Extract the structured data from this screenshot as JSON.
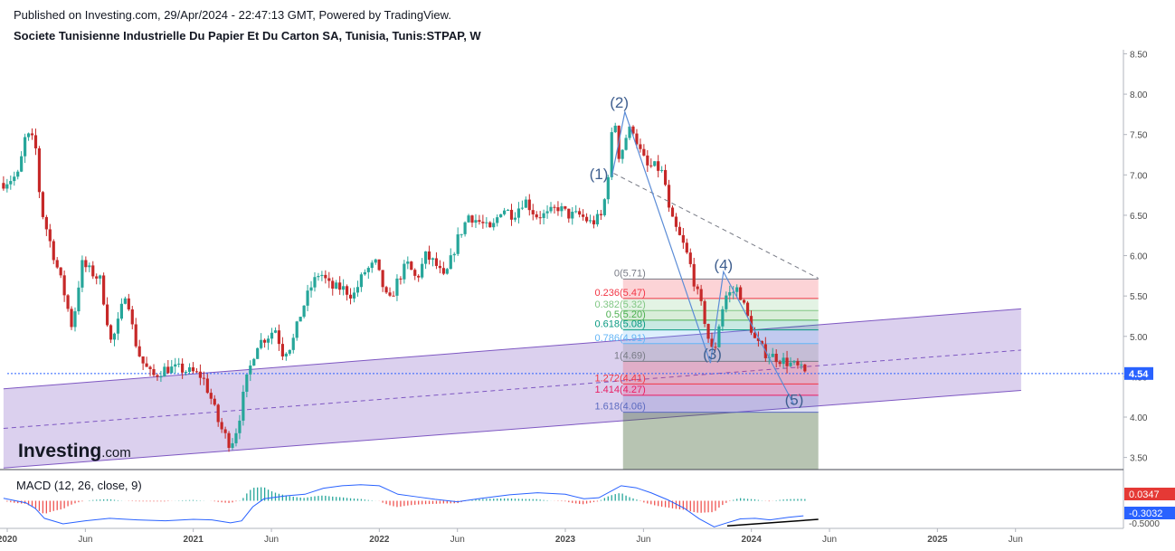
{
  "header": {
    "published": "Published on Investing.com, 29/Apr/2024 - 22:47:13 GMT, Powered by TradingView.",
    "title": "Societe Tunisienne Industrielle Du Papier Et Du Carton SA, Tunisia, Tunis:STPAP, W"
  },
  "logo": {
    "main": "Investing",
    "suffix": ".com"
  },
  "chart_data": [
    {
      "type": "candlestick",
      "title": "Societe Tunisienne Industrielle Du Papier Et Du Carton SA, Tunisia, Tunis:STPAP, W",
      "timeframe": "W",
      "y_axis": {
        "side": "right",
        "range": [
          3.35,
          8.55
        ],
        "ticks": [
          8.5,
          8.0,
          7.5,
          7.0,
          6.5,
          6.0,
          5.5,
          5.0,
          4.5,
          4.0,
          3.5
        ],
        "tick_labels": [
          "8.50",
          "8.00",
          "7.50",
          "7.00",
          "6.50",
          "6.00",
          "5.50",
          "5.00",
          "4.50",
          "4.00",
          "3.50"
        ]
      },
      "x_axis": {
        "range": [
          2020.0,
          2026.0
        ],
        "ticks": [
          2020.0,
          2020.42,
          2021.0,
          2021.42,
          2022.0,
          2022.42,
          2023.0,
          2023.42,
          2024.0,
          2024.42,
          2025.0,
          2025.42
        ],
        "tick_labels": [
          "2020",
          "Jun",
          "2021",
          "Jun",
          "2022",
          "Jun",
          "2023",
          "Jun",
          "2024",
          "Jun",
          "2025",
          "Jun"
        ]
      },
      "colors": {
        "up": "#26a69a",
        "down": "#c62828",
        "channel": "#7e57c2",
        "wave": "#5b8cd6"
      },
      "last_price": {
        "value": 4.54,
        "label": "4.54",
        "color": "#2962ff"
      },
      "price_path": [
        [
          2019.98,
          6.9
        ],
        [
          2020.06,
          7.0
        ],
        [
          2020.1,
          7.5
        ],
        [
          2020.15,
          7.4
        ],
        [
          2020.18,
          6.6
        ],
        [
          2020.25,
          6.0
        ],
        [
          2020.3,
          5.6
        ],
        [
          2020.35,
          5.1
        ],
        [
          2020.4,
          5.9
        ],
        [
          2020.45,
          5.8
        ],
        [
          2020.5,
          5.7
        ],
        [
          2020.56,
          4.9
        ],
        [
          2020.6,
          5.2
        ],
        [
          2020.64,
          5.6
        ],
        [
          2020.68,
          5.0
        ],
        [
          2020.72,
          4.7
        ],
        [
          2020.78,
          4.5
        ],
        [
          2020.85,
          4.6
        ],
        [
          2020.92,
          4.6
        ],
        [
          2021.0,
          4.55
        ],
        [
          2021.05,
          4.5
        ],
        [
          2021.1,
          4.2
        ],
        [
          2021.14,
          3.9
        ],
        [
          2021.2,
          3.65
        ],
        [
          2021.24,
          3.9
        ],
        [
          2021.28,
          4.4
        ],
        [
          2021.34,
          4.9
        ],
        [
          2021.4,
          5.0
        ],
        [
          2021.44,
          5.1
        ],
        [
          2021.48,
          4.8
        ],
        [
          2021.53,
          4.9
        ],
        [
          2021.58,
          5.3
        ],
        [
          2021.63,
          5.6
        ],
        [
          2021.68,
          5.8
        ],
        [
          2021.74,
          5.6
        ],
        [
          2021.8,
          5.6
        ],
        [
          2021.86,
          5.5
        ],
        [
          2021.92,
          5.8
        ],
        [
          2021.98,
          5.9
        ],
        [
          2022.05,
          5.4
        ],
        [
          2022.1,
          5.7
        ],
        [
          2022.15,
          5.9
        ],
        [
          2022.2,
          5.7
        ],
        [
          2022.25,
          6.0
        ],
        [
          2022.3,
          5.9
        ],
        [
          2022.35,
          5.7
        ],
        [
          2022.42,
          6.2
        ],
        [
          2022.48,
          6.5
        ],
        [
          2022.55,
          6.4
        ],
        [
          2022.6,
          6.3
        ],
        [
          2022.66,
          6.6
        ],
        [
          2022.72,
          6.5
        ],
        [
          2022.78,
          6.7
        ],
        [
          2022.84,
          6.5
        ],
        [
          2022.9,
          6.5
        ],
        [
          2022.96,
          6.6
        ],
        [
          2023.02,
          6.5
        ],
        [
          2023.08,
          6.5
        ],
        [
          2023.14,
          6.4
        ],
        [
          2023.2,
          6.5
        ],
        [
          2023.24,
          7.2
        ],
        [
          2023.26,
          7.8
        ],
        [
          2023.29,
          7.2
        ],
        [
          2023.33,
          7.5
        ],
        [
          2023.36,
          7.6
        ],
        [
          2023.4,
          7.3
        ],
        [
          2023.44,
          7.1
        ],
        [
          2023.49,
          7.1
        ],
        [
          2023.53,
          7.0
        ],
        [
          2023.56,
          6.5
        ],
        [
          2023.6,
          6.3
        ],
        [
          2023.64,
          6.1
        ],
        [
          2023.67,
          5.9
        ],
        [
          2023.7,
          5.6
        ],
        [
          2023.74,
          5.3
        ],
        [
          2023.78,
          4.85
        ],
        [
          2023.8,
          4.8
        ],
        [
          2023.83,
          5.2
        ],
        [
          2023.86,
          5.5
        ],
        [
          2023.9,
          5.55
        ],
        [
          2023.93,
          5.6
        ],
        [
          2023.97,
          5.3
        ],
        [
          2024.02,
          4.95
        ],
        [
          2024.07,
          4.8
        ],
        [
          2024.12,
          4.75
        ],
        [
          2024.17,
          4.7
        ],
        [
          2024.22,
          4.65
        ],
        [
          2024.26,
          4.6
        ],
        [
          2024.29,
          4.54
        ]
      ],
      "annotations": {
        "wave_labels": [
          {
            "label": "(1)",
            "x": 2023.18,
            "y": 6.95
          },
          {
            "label": "(2)",
            "x": 2023.29,
            "y": 7.83
          },
          {
            "label": "(3)",
            "x": 2023.79,
            "y": 4.72
          },
          {
            "label": "(4)",
            "x": 2023.85,
            "y": 5.82
          },
          {
            "label": "(5)",
            "x": 2024.23,
            "y": 4.15
          }
        ],
        "wave_path": [
          [
            2023.25,
            6.98
          ],
          [
            2023.32,
            7.78
          ],
          [
            2023.78,
            4.67
          ],
          [
            2023.85,
            5.8
          ],
          [
            2024.23,
            4.15
          ]
        ],
        "fib_retracement": {
          "x_start": 2023.31,
          "x_end": 2024.36,
          "levels": [
            {
              "label": "0(5.71)",
              "price": 5.71,
              "color": "#787b86"
            },
            {
              "label": "0.236(5.47)",
              "price": 5.47,
              "color": "#f23645"
            },
            {
              "label": "0.382(5.32)",
              "price": 5.32,
              "color": "#81c784"
            },
            {
              "label": "0.5(5.20)",
              "price": 5.2,
              "color": "#4caf50"
            },
            {
              "label": "0.618(5.08)",
              "price": 5.08,
              "color": "#089981"
            },
            {
              "label": "0.786(4.91)",
              "price": 4.91,
              "color": "#64b5f6"
            },
            {
              "label": "1(4.69)",
              "price": 4.69,
              "color": "#787b86"
            },
            {
              "label": "1.272(4.41)",
              "price": 4.41,
              "color": "#f23645"
            },
            {
              "label": "1.414(4.27)",
              "price": 4.27,
              "color": "#e91e63"
            },
            {
              "label": "1.618(4.06)",
              "price": 4.06,
              "color": "#5c6bc0"
            }
          ],
          "bottom": 3.35
        },
        "channel": {
          "upper": [
            [
              2019.98,
              4.35
            ],
            [
              2025.45,
              5.34
            ]
          ],
          "lower": [
            [
              2019.98,
              3.37
            ],
            [
              2025.45,
              4.33
            ]
          ],
          "mid": [
            [
              2019.98,
              3.86
            ],
            [
              2025.45,
              4.83
            ]
          ]
        },
        "resistance_trendline": [
          [
            2023.26,
            7.02
          ],
          [
            2024.36,
            5.72
          ]
        ]
      }
    },
    {
      "type": "macd",
      "label": "MACD (12, 26, close, 9)",
      "value_labels": [
        {
          "text": "0.0347",
          "color": "#e53935"
        },
        {
          "text": "-0.3032",
          "color": "#2962ff"
        }
      ],
      "axis_tick_label": "-0.5000",
      "y_range": [
        -0.55,
        0.55
      ],
      "macd_line": [
        [
          2019.98,
          0.05
        ],
        [
          2020.1,
          -0.04
        ],
        [
          2020.15,
          -0.15
        ],
        [
          2020.2,
          -0.35
        ],
        [
          2020.3,
          -0.46
        ],
        [
          2020.42,
          -0.4
        ],
        [
          2020.55,
          -0.35
        ],
        [
          2020.7,
          -0.38
        ],
        [
          2020.85,
          -0.4
        ],
        [
          2021.0,
          -0.37
        ],
        [
          2021.1,
          -0.38
        ],
        [
          2021.2,
          -0.44
        ],
        [
          2021.26,
          -0.4
        ],
        [
          2021.32,
          -0.12
        ],
        [
          2021.38,
          0.04
        ],
        [
          2021.5,
          0.1
        ],
        [
          2021.6,
          0.13
        ],
        [
          2021.7,
          0.25
        ],
        [
          2021.8,
          0.3
        ],
        [
          2021.9,
          0.32
        ],
        [
          2022.0,
          0.3
        ],
        [
          2022.1,
          0.13
        ],
        [
          2022.2,
          0.08
        ],
        [
          2022.3,
          0.03
        ],
        [
          2022.42,
          -0.02
        ],
        [
          2022.55,
          0.05
        ],
        [
          2022.7,
          0.12
        ],
        [
          2022.85,
          0.16
        ],
        [
          2023.0,
          0.13
        ],
        [
          2023.1,
          0.04
        ],
        [
          2023.18,
          0.06
        ],
        [
          2023.26,
          0.22
        ],
        [
          2023.3,
          0.3
        ],
        [
          2023.38,
          0.26
        ],
        [
          2023.46,
          0.16
        ],
        [
          2023.55,
          0.02
        ],
        [
          2023.64,
          -0.15
        ],
        [
          2023.72,
          -0.36
        ],
        [
          2023.8,
          -0.52
        ],
        [
          2023.86,
          -0.45
        ],
        [
          2023.94,
          -0.36
        ],
        [
          2024.02,
          -0.35
        ],
        [
          2024.1,
          -0.38
        ],
        [
          2024.2,
          -0.33
        ],
        [
          2024.28,
          -0.3
        ]
      ],
      "divergence_line": [
        [
          2023.87,
          -0.5
        ],
        [
          2024.36,
          -0.37
        ]
      ]
    }
  ]
}
